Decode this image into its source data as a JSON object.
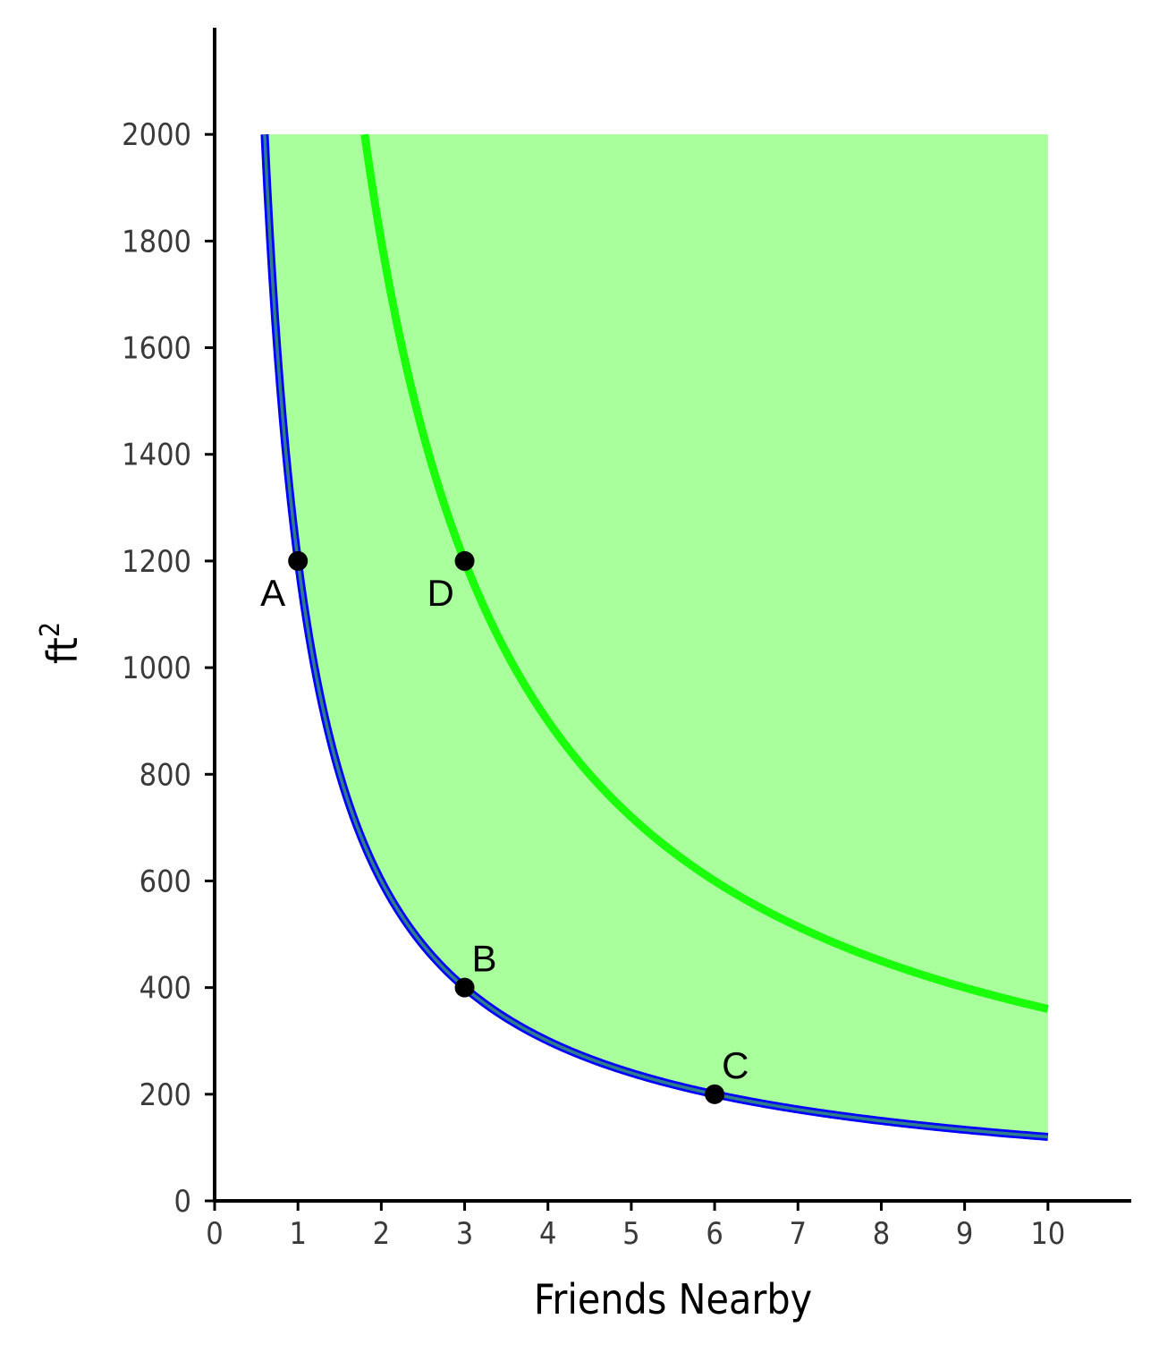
{
  "chart_data": {
    "type": "line",
    "xlabel": "Friends Nearby",
    "ylabel": "ft",
    "ylabel_superscript": "2",
    "xlim": [
      0,
      11
    ],
    "ylim": [
      0,
      2200
    ],
    "x_ticks": [
      "0",
      "1",
      "2",
      "3",
      "4",
      "5",
      "6",
      "7",
      "8",
      "9",
      "10"
    ],
    "y_ticks": [
      "0",
      "200",
      "400",
      "600",
      "800",
      "1000",
      "1200",
      "1400",
      "1600",
      "1800",
      "2000"
    ],
    "grid": false,
    "legend": "none",
    "colors": {
      "shaded_region": "#a8ff9c",
      "lower_curve": "#0000ff",
      "lower_curve_inner": "#2e7d8c",
      "upper_curve": "#1aff0a",
      "points": "#000000",
      "axis": "#000000"
    },
    "series": [
      {
        "formula": "y = 1200 / x",
        "x_range": [
          0.6,
          10
        ],
        "values_at": {
          "1": 1200,
          "3": 400,
          "6": 200,
          "10": 120
        }
      },
      {
        "formula": "y = 3600 / x",
        "x_range": [
          1.8,
          10
        ],
        "values_at": {
          "1.8": 2000,
          "3": 1200,
          "6": 600,
          "10": 360
        }
      }
    ],
    "shaded_area": {
      "description": "region above lower curve, bounded by y = 2000 and x = 10",
      "y_max": 2000,
      "x_max": 10
    },
    "points": [
      {
        "label": "A",
        "x": 1,
        "y": 1200
      },
      {
        "label": "B",
        "x": 3,
        "y": 400
      },
      {
        "label": "C",
        "x": 6,
        "y": 200
      },
      {
        "label": "D",
        "x": 3,
        "y": 1200
      }
    ]
  }
}
